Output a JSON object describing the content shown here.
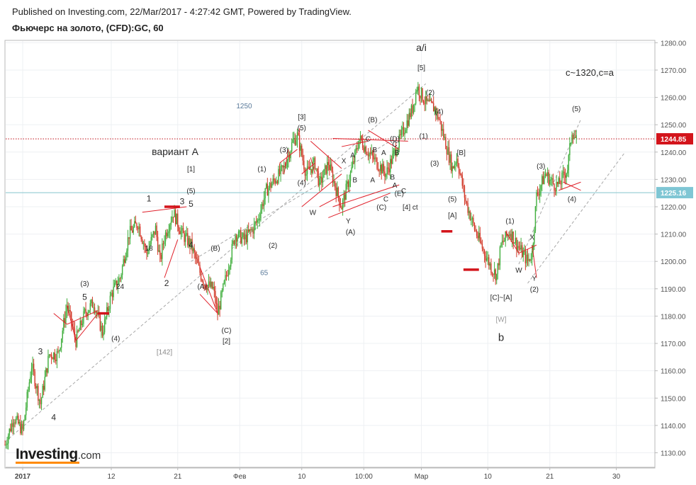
{
  "header": {
    "published": "Published on Investing.com, 22/Mar/2017 - 4:27:42 GMT, Powered by TradingView.",
    "instrument": "Фьючерс на золото, (CFD):GC, 60"
  },
  "logo": {
    "name": "Investing",
    "suffix": ".com"
  },
  "colors": {
    "up": "#3fae3c",
    "down": "#d23a2a",
    "annotation_line": "#e0202a",
    "channel": "#a8a8a8",
    "price_line": "#c0101a",
    "level_line": "#84c5ce",
    "price_tag": "#d3141b",
    "level_tag": "#7fc6d4"
  },
  "chart_data": {
    "type": "candlestick",
    "timeframe": "60",
    "x_ticks": [
      {
        "label": "2017",
        "bold": true,
        "t": 4
      },
      {
        "label": "12",
        "t": 24
      },
      {
        "label": "21",
        "t": 39
      },
      {
        "label": "Фев",
        "t": 53
      },
      {
        "label": "10",
        "t": 67
      },
      {
        "label": "10:00",
        "t": 81
      },
      {
        "label": "Мар",
        "t": 94
      },
      {
        "label": "10",
        "t": 109
      },
      {
        "label": "21",
        "t": 123
      },
      {
        "label": "30",
        "t": 138
      }
    ],
    "ylim": [
      1126,
      1283
    ],
    "y_ticks": [
      1130,
      1140,
      1150,
      1160,
      1170,
      1180,
      1190,
      1200,
      1210,
      1220,
      1230,
      1240,
      1250,
      1260,
      1270,
      1280
    ],
    "y_tick_labels": [
      "1130.00",
      "1140.00",
      "1150.00",
      "1160.00",
      "1170.00",
      "1180.00",
      "1190.00",
      "1200.00",
      "1210.00",
      "1220.00",
      "1230.00",
      "1240.00",
      "1250.00",
      "1260.00",
      "1270.00",
      "1280.00"
    ],
    "last_price": 1244.85,
    "last_price_label": "1244.85",
    "level": 1225.16,
    "level_label": "1225.16",
    "price_path": [
      [
        0,
        1133
      ],
      [
        2,
        1143
      ],
      [
        4,
        1138
      ],
      [
        6,
        1162
      ],
      [
        8,
        1148
      ],
      [
        10,
        1166
      ],
      [
        12,
        1166
      ],
      [
        14,
        1184
      ],
      [
        16,
        1171
      ],
      [
        18,
        1181
      ],
      [
        20,
        1185
      ],
      [
        22,
        1174
      ],
      [
        24,
        1188
      ],
      [
        26,
        1194
      ],
      [
        28,
        1210
      ],
      [
        30,
        1214
      ],
      [
        32,
        1203
      ],
      [
        34,
        1212
      ],
      [
        35,
        1200
      ],
      [
        36,
        1209
      ],
      [
        38,
        1218
      ],
      [
        40,
        1210
      ],
      [
        42,
        1206
      ],
      [
        44,
        1196
      ],
      [
        45,
        1192
      ],
      [
        47,
        1190
      ],
      [
        48,
        1181
      ],
      [
        50,
        1195
      ],
      [
        52,
        1210
      ],
      [
        54,
        1208
      ],
      [
        56,
        1212
      ],
      [
        57,
        1215
      ],
      [
        59,
        1226
      ],
      [
        61,
        1230
      ],
      [
        63,
        1234
      ],
      [
        65,
        1244
      ],
      [
        66,
        1246
      ],
      [
        68,
        1232
      ],
      [
        70,
        1236
      ],
      [
        71,
        1228
      ],
      [
        73,
        1236
      ],
      [
        75,
        1225
      ],
      [
        76,
        1220
      ],
      [
        78,
        1232
      ],
      [
        80,
        1245
      ],
      [
        82,
        1240
      ],
      [
        84,
        1236
      ],
      [
        86,
        1232
      ],
      [
        88,
        1240
      ],
      [
        90,
        1248
      ],
      [
        92,
        1256
      ],
      [
        93,
        1264
      ],
      [
        95,
        1258
      ],
      [
        97,
        1256
      ],
      [
        98,
        1252
      ],
      [
        100,
        1240
      ],
      [
        101,
        1234
      ],
      [
        102,
        1238
      ],
      [
        104,
        1222
      ],
      [
        106,
        1212
      ],
      [
        108,
        1204
      ],
      [
        110,
        1197
      ],
      [
        111,
        1195
      ],
      [
        112,
        1206
      ],
      [
        114,
        1211
      ],
      [
        116,
        1205
      ],
      [
        118,
        1200
      ],
      [
        119,
        1203
      ],
      [
        120,
        1224
      ],
      [
        122,
        1232
      ],
      [
        124,
        1228
      ],
      [
        125,
        1228
      ],
      [
        127,
        1234
      ],
      [
        128,
        1248
      ],
      [
        129,
        1244
      ]
    ],
    "annotations": [
      {
        "text": "a/i",
        "t": 94,
        "y": 1278,
        "size": 14
      },
      {
        "text": "[5]",
        "t": 94,
        "y": 1271
      },
      {
        "text": "c~1320,c=a",
        "t": 132,
        "y": 1269,
        "size": 13
      },
      {
        "text": "1250",
        "t": 54,
        "y": 1257,
        "color": "#5a7a9a"
      },
      {
        "text": "вариант A",
        "t": 40,
        "y": 1240,
        "size": 14,
        "x_offset": -10
      },
      {
        "text": "[3]",
        "t": 67,
        "y": 1253
      },
      {
        "text": "(5)",
        "t": 67,
        "y": 1249
      },
      {
        "text": "(B)",
        "t": 83,
        "y": 1252
      },
      {
        "text": "(2)",
        "t": 96,
        "y": 1262
      },
      {
        "text": "(4)",
        "t": 98,
        "y": 1255
      },
      {
        "text": "(1)",
        "t": 94.5,
        "y": 1246
      },
      {
        "text": "(5)",
        "t": 129,
        "y": 1256
      },
      {
        "text": "C",
        "t": 82,
        "y": 1245
      },
      {
        "text": "(D)",
        "t": 88,
        "y": 1245
      },
      {
        "text": "C",
        "t": 88,
        "y": 1243
      },
      {
        "text": "(3)",
        "t": 63,
        "y": 1241
      },
      {
        "text": "A",
        "t": 78.5,
        "y": 1239
      },
      {
        "text": "B",
        "t": 83.5,
        "y": 1241
      },
      {
        "text": "A",
        "t": 85.5,
        "y": 1240
      },
      {
        "text": "B",
        "t": 88.5,
        "y": 1240
      },
      {
        "text": "X",
        "t": 76.5,
        "y": 1237
      },
      {
        "text": "[B]",
        "t": 103,
        "y": 1240
      },
      {
        "text": "[1]",
        "t": 42,
        "y": 1234
      },
      {
        "text": "(5)",
        "t": 42,
        "y": 1226
      },
      {
        "text": "(1)",
        "t": 58,
        "y": 1234
      },
      {
        "text": "(3)",
        "t": 97,
        "y": 1236
      },
      {
        "text": "(3)",
        "t": 121,
        "y": 1235
      },
      {
        "text": "B",
        "t": 79,
        "y": 1230
      },
      {
        "text": "A",
        "t": 83,
        "y": 1230
      },
      {
        "text": "B",
        "t": 87.5,
        "y": 1231
      },
      {
        "text": "(4)",
        "t": 67,
        "y": 1229
      },
      {
        "text": "A",
        "t": 88,
        "y": 1228
      },
      {
        "text": "C",
        "t": 90,
        "y": 1226
      },
      {
        "text": "(E)",
        "t": 89,
        "y": 1225
      },
      {
        "text": "C",
        "t": 86,
        "y": 1223
      },
      {
        "text": "(4)",
        "t": 128,
        "y": 1223
      },
      {
        "text": "(5)",
        "t": 101,
        "y": 1223
      },
      {
        "text": "1",
        "t": 32.5,
        "y": 1223,
        "size": 12
      },
      {
        "text": "3",
        "t": 40,
        "y": 1222,
        "size": 12
      },
      {
        "text": "5",
        "t": 42,
        "y": 1221,
        "size": 12
      },
      {
        "text": "(C)",
        "t": 85,
        "y": 1220
      },
      {
        "text": "[4]  ct",
        "t": 91.5,
        "y": 1220
      },
      {
        "text": "W",
        "t": 69.5,
        "y": 1218
      },
      {
        "text": "[A]",
        "t": 101,
        "y": 1217
      },
      {
        "text": "Y",
        "t": 77.5,
        "y": 1215
      },
      {
        "text": "(1)",
        "t": 114,
        "y": 1215
      },
      {
        "text": "(A)",
        "t": 78,
        "y": 1211
      },
      {
        "text": "X",
        "t": 119,
        "y": 1209
      },
      {
        "text": "4",
        "t": 42,
        "y": 1206,
        "size": 12
      },
      {
        "text": "(B)",
        "t": 47.5,
        "y": 1205
      },
      {
        "text": "18",
        "t": 32.5,
        "y": 1205
      },
      {
        "text": "(2)",
        "t": 60.5,
        "y": 1206
      },
      {
        "text": "W",
        "t": 116,
        "y": 1197
      },
      {
        "text": "Y",
        "t": 119.5,
        "y": 1194
      },
      {
        "text": "65",
        "t": 58.5,
        "y": 1196,
        "color": "#5a7a9a"
      },
      {
        "text": "2",
        "t": 36.5,
        "y": 1192,
        "size": 12
      },
      {
        "text": "(3)",
        "t": 18,
        "y": 1192
      },
      {
        "text": "24",
        "t": 26,
        "y": 1191
      },
      {
        "text": "(A)",
        "t": 44.5,
        "y": 1191
      },
      {
        "text": "(2)",
        "t": 119.5,
        "y": 1190
      },
      {
        "text": "5",
        "t": 18,
        "y": 1187,
        "size": 12
      },
      {
        "text": "[C]~[A]",
        "t": 112,
        "y": 1187
      },
      {
        "text": "[W]",
        "t": 112,
        "y": 1179,
        "color": "#999999"
      },
      {
        "text": "(C)",
        "t": 50,
        "y": 1175
      },
      {
        "text": "b",
        "t": 112,
        "y": 1172,
        "size": 15
      },
      {
        "text": "(4)",
        "t": 25,
        "y": 1172
      },
      {
        "text": "[2]",
        "t": 50,
        "y": 1171
      },
      {
        "text": "[142]",
        "t": 36,
        "y": 1167,
        "color": "#888888"
      },
      {
        "text": "3",
        "t": 8,
        "y": 1167,
        "size": 12
      },
      {
        "text": "4",
        "t": 11,
        "y": 1143,
        "size": 12
      }
    ]
  }
}
